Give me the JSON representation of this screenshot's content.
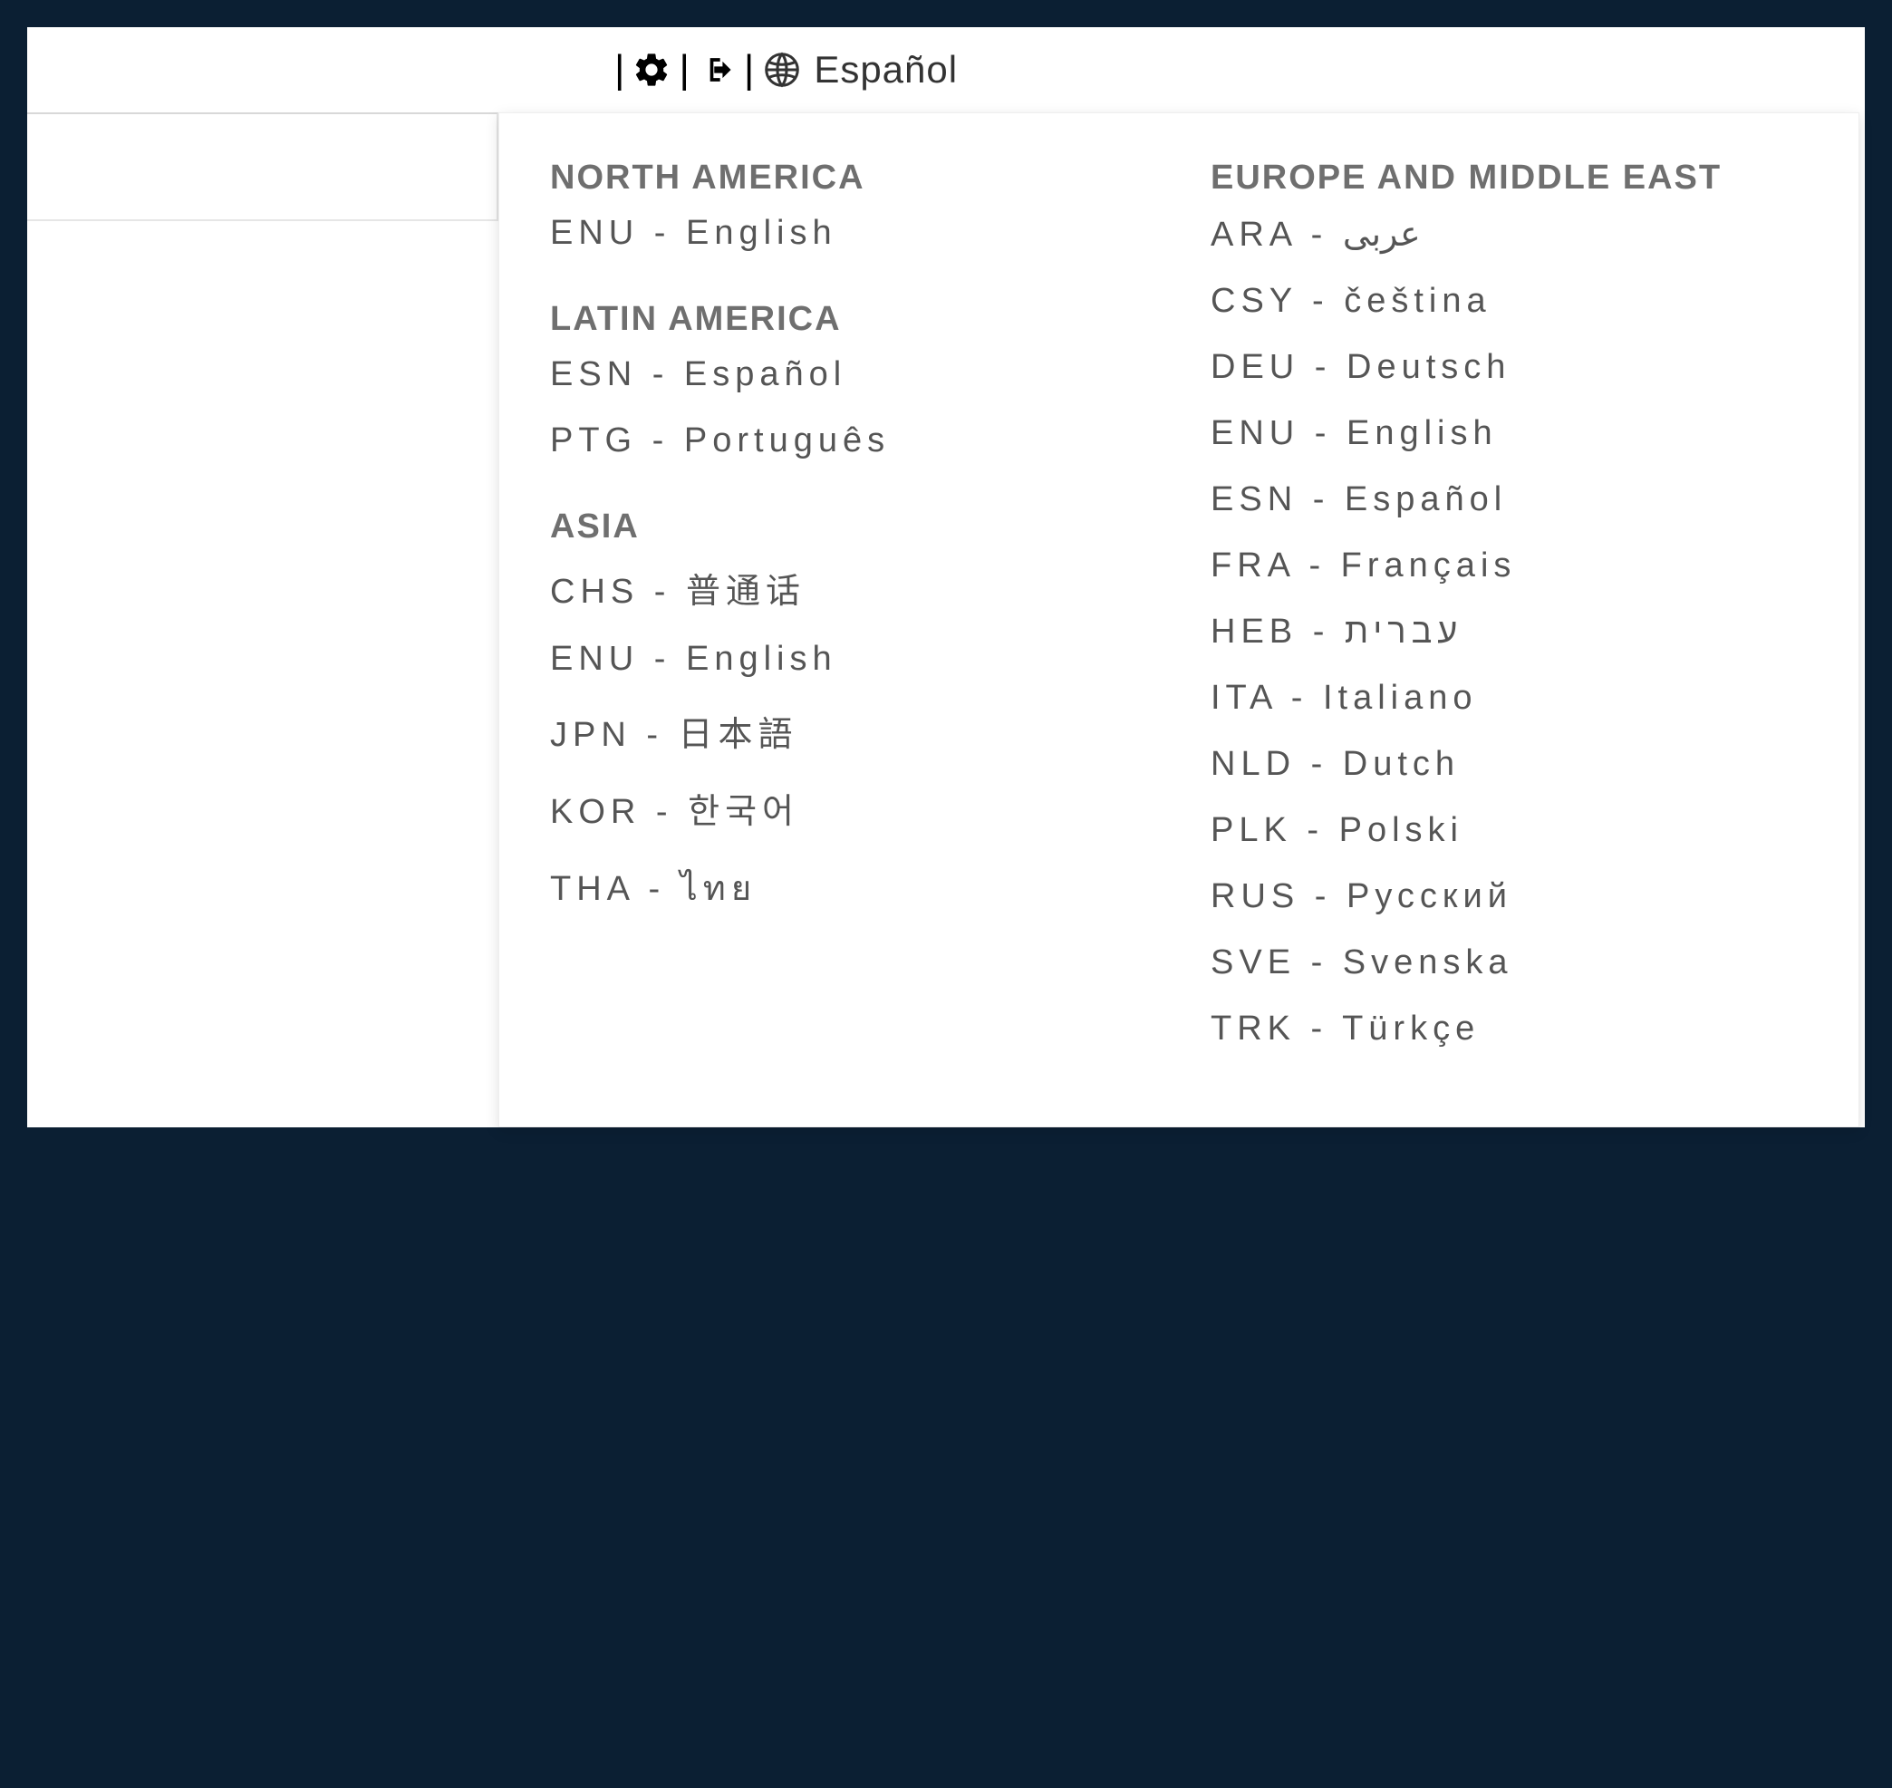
{
  "toolbar": {
    "current_language": "Español"
  },
  "dropdown": {
    "left_column": [
      {
        "region": "NORTH AMERICA",
        "languages": [
          {
            "code": "ENU",
            "name": "English"
          }
        ]
      },
      {
        "region": "LATIN AMERICA",
        "languages": [
          {
            "code": "ESN",
            "name": "Español"
          },
          {
            "code": "PTG",
            "name": "Português"
          }
        ]
      },
      {
        "region": "ASIA",
        "languages": [
          {
            "code": "CHS",
            "name": "普通话"
          },
          {
            "code": "ENU",
            "name": "English"
          },
          {
            "code": "JPN",
            "name": "日本語"
          },
          {
            "code": "KOR",
            "name": "한국어"
          },
          {
            "code": "THA",
            "name": "ไทย"
          }
        ]
      }
    ],
    "right_column": [
      {
        "region": "EUROPE AND MIDDLE EAST",
        "languages": [
          {
            "code": "ARA",
            "name": "عربى"
          },
          {
            "code": "CSY",
            "name": "čeština"
          },
          {
            "code": "DEU",
            "name": "Deutsch"
          },
          {
            "code": "ENU",
            "name": "English"
          },
          {
            "code": "ESN",
            "name": "Español"
          },
          {
            "code": "FRA",
            "name": "Français"
          },
          {
            "code": "HEB",
            "name": "עברית"
          },
          {
            "code": "ITA",
            "name": "Italiano"
          },
          {
            "code": "NLD",
            "name": "Dutch"
          },
          {
            "code": "PLK",
            "name": "Polski"
          },
          {
            "code": "RUS",
            "name": "Русский"
          },
          {
            "code": "SVE",
            "name": "Svenska"
          },
          {
            "code": "TRK",
            "name": "Türkçe"
          }
        ]
      }
    ]
  },
  "colors": {
    "page_background": "#0b1f33",
    "panel_background": "#ffffff",
    "header_text": "#6f6f6f",
    "item_text": "#555555",
    "border": "#e6e6e6"
  },
  "typography": {
    "header_fontsize": 38,
    "item_fontsize": 38,
    "item_letter_spacing": 6
  }
}
